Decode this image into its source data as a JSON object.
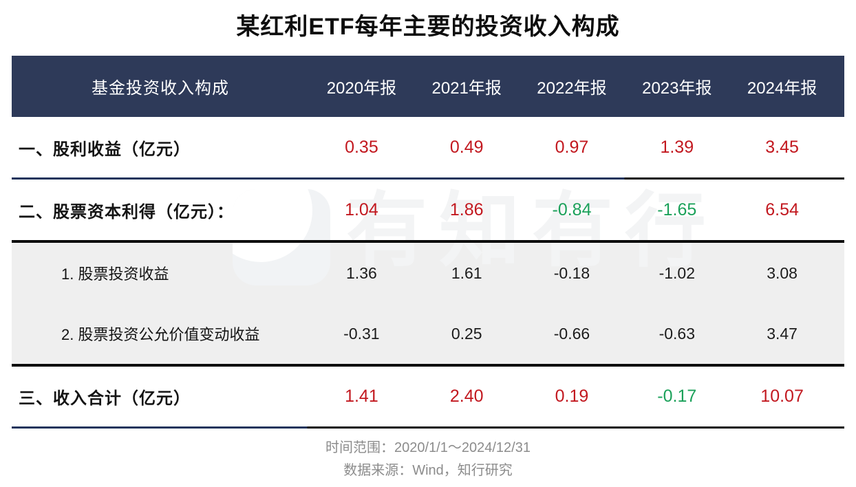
{
  "title": "某红利ETF每年主要的投资收入构成",
  "table": {
    "header": {
      "label": "基金投资收入构成",
      "years": [
        "2020年报",
        "2021年报",
        "2022年报",
        "2023年报",
        "2024年报"
      ]
    },
    "rows": [
      {
        "label": "一、股利收益（亿元）",
        "level": "top",
        "sep": "navy-black-73",
        "values": [
          {
            "text": "0.35",
            "color": "red"
          },
          {
            "text": "0.49",
            "color": "red"
          },
          {
            "text": "0.97",
            "color": "red"
          },
          {
            "text": "1.39",
            "color": "red"
          },
          {
            "text": "3.45",
            "color": "red"
          }
        ]
      },
      {
        "label": "二、股票资本利得（亿元）：",
        "level": "top",
        "sep": "black-full",
        "values": [
          {
            "text": "1.04",
            "color": "red"
          },
          {
            "text": "1.86",
            "color": "red"
          },
          {
            "text": "-0.84",
            "color": "green"
          },
          {
            "text": "-1.65",
            "color": "green"
          },
          {
            "text": "6.54",
            "color": "red"
          }
        ]
      },
      {
        "label": "1. 股票投资收益",
        "level": "sub",
        "sep": "none",
        "values": [
          {
            "text": "1.36",
            "color": "black"
          },
          {
            "text": "1.61",
            "color": "black"
          },
          {
            "text": "-0.18",
            "color": "black"
          },
          {
            "text": "-1.02",
            "color": "black"
          },
          {
            "text": "3.08",
            "color": "black"
          }
        ]
      },
      {
        "label": "2. 股票投资公允价值变动收益",
        "level": "sub",
        "sep": "black-full",
        "values": [
          {
            "text": "-0.31",
            "color": "black"
          },
          {
            "text": "0.25",
            "color": "black"
          },
          {
            "text": "-0.66",
            "color": "black"
          },
          {
            "text": "-0.63",
            "color": "black"
          },
          {
            "text": "3.47",
            "color": "black"
          }
        ]
      },
      {
        "label": "三、收入合计（亿元）",
        "level": "total",
        "sep": "navy-black-36",
        "values": [
          {
            "text": "1.41",
            "color": "red"
          },
          {
            "text": "2.40",
            "color": "red"
          },
          {
            "text": "0.19",
            "color": "red"
          },
          {
            "text": "-0.17",
            "color": "green"
          },
          {
            "text": "10.07",
            "color": "red"
          }
        ]
      }
    ]
  },
  "watermark": {
    "logo": "youzhiyouxing-logo",
    "text": "有知有行"
  },
  "footer": {
    "time_range": "时间范围：2020/1/1～2024/12/31",
    "source": "数据来源：Wind，知行研究"
  },
  "colors": {
    "header_bg": "#2e3a59",
    "navy_line": "#1d345c",
    "black_line": "#0a0a0a",
    "sub_bg": "#efefef",
    "red": "#c2181f",
    "green": "#1ba15a",
    "footer_text": "#8c8c8c"
  },
  "chart_data": {
    "type": "table",
    "title": "某红利ETF每年主要的投资收入构成",
    "columns": [
      "基金投资收入构成",
      "2020年报",
      "2021年报",
      "2022年报",
      "2023年报",
      "2024年报"
    ],
    "rows": [
      [
        "一、股利收益（亿元）",
        0.35,
        0.49,
        0.97,
        1.39,
        3.45
      ],
      [
        "二、股票资本利得（亿元）：",
        1.04,
        1.86,
        -0.84,
        -1.65,
        6.54
      ],
      [
        "1. 股票投资收益",
        1.36,
        1.61,
        -0.18,
        -1.02,
        3.08
      ],
      [
        "2. 股票投资公允价值变动收益",
        -0.31,
        0.25,
        -0.66,
        -0.63,
        3.47
      ],
      [
        "三、收入合计（亿元）",
        1.41,
        2.4,
        0.19,
        -0.17,
        10.07
      ]
    ],
    "value_unit": "亿元",
    "notes": [
      "时间范围：2020/1/1～2024/12/31",
      "数据来源：Wind，知行研究"
    ],
    "style_notes": "positive values red, negative values green in summary rows; sub-rows black on light gray band"
  }
}
